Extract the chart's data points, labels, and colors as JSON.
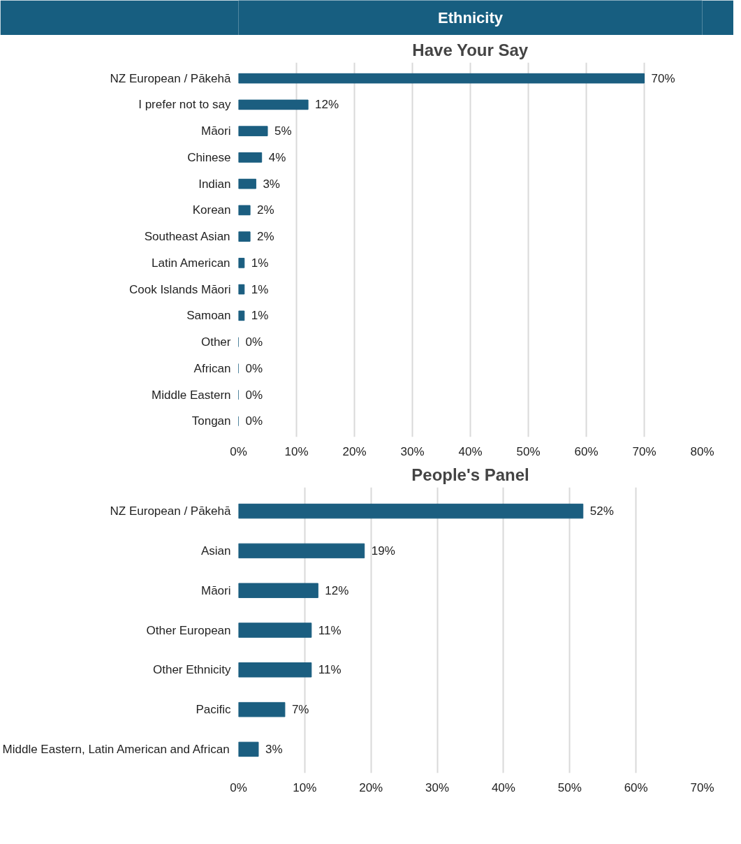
{
  "chart_data": [
    {
      "type": "other",
      "title": "Ethnicity"
    },
    {
      "type": "bar",
      "orientation": "horizontal",
      "title": "Have Your Say",
      "categories": [
        "NZ European / Pākehā",
        "I prefer not to say",
        "Māori",
        "Chinese",
        "Indian",
        "Korean",
        "Southeast Asian",
        "Latin American",
        "Cook Islands Māori",
        "Samoan",
        "Other",
        "African",
        "Middle Eastern",
        "Tongan"
      ],
      "values": [
        70,
        12,
        5,
        4,
        3,
        2,
        2,
        1,
        1,
        1,
        0,
        0,
        0,
        0
      ],
      "value_labels": [
        "70%",
        "12%",
        "5%",
        "4%",
        "3%",
        "2%",
        "2%",
        "1%",
        "1%",
        "1%",
        "0%",
        "0%",
        "0%",
        "0%"
      ],
      "color": "#1b5e80",
      "xlim": [
        0,
        80
      ],
      "xticks": [
        {
          "value": 0,
          "label": "0%"
        },
        {
          "value": 10,
          "label": "10%"
        },
        {
          "value": 20,
          "label": "20%"
        },
        {
          "value": 30,
          "label": "30%"
        },
        {
          "value": 40,
          "label": "40%"
        },
        {
          "value": 50,
          "label": "50%"
        },
        {
          "value": 60,
          "label": "60%"
        },
        {
          "value": 70,
          "label": "70%"
        },
        {
          "value": 80,
          "label": "80%"
        }
      ],
      "grid": "x"
    },
    {
      "type": "bar",
      "orientation": "horizontal",
      "title": "People's Panel",
      "categories": [
        "NZ European / Pākehā",
        "Asian",
        "Māori",
        "Other European",
        "Other Ethnicity",
        "Pacific",
        "Middle Eastern, Latin American and African"
      ],
      "values": [
        52,
        19,
        12,
        11,
        11,
        7,
        3
      ],
      "value_labels": [
        "52%",
        "19%",
        "12%",
        "11%",
        "11%",
        "7%",
        "3%"
      ],
      "color": "#1b5e80",
      "xlim": [
        0,
        70
      ],
      "xticks": [
        {
          "value": 0,
          "label": "0%"
        },
        {
          "value": 10,
          "label": "10%"
        },
        {
          "value": 20,
          "label": "20%"
        },
        {
          "value": 30,
          "label": "30%"
        },
        {
          "value": 40,
          "label": "40%"
        },
        {
          "value": 50,
          "label": "50%"
        },
        {
          "value": 60,
          "label": "60%"
        },
        {
          "value": 70,
          "label": "70%"
        }
      ],
      "grid": "x"
    }
  ]
}
